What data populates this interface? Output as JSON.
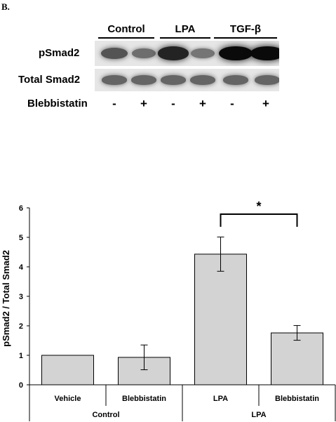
{
  "panel_label": "B.",
  "blot": {
    "groups": [
      "Control",
      "LPA",
      "TGF-β"
    ],
    "rows": [
      "pSmad2",
      "Total Smad2",
      "Blebbistatin"
    ],
    "lane_signs": [
      "-",
      "+",
      "-",
      "+",
      "-",
      "+"
    ],
    "psmad2_band_intensity": [
      0.55,
      0.4,
      0.85,
      0.35,
      1.0,
      1.0
    ],
    "total_smad2_band_intensity": [
      0.45,
      0.45,
      0.45,
      0.45,
      0.45,
      0.45
    ]
  },
  "chart_data": {
    "type": "bar",
    "categories": [
      "Vehicle",
      "Blebbistatin",
      "LPA",
      "Blebbistatin"
    ],
    "groups": [
      "Control",
      "LPA"
    ],
    "values": [
      1.0,
      0.93,
      4.43,
      1.76
    ],
    "errors": [
      0,
      0.42,
      0.58,
      0.25
    ],
    "ylabel": "pSmad2 / Total Smad2",
    "ylim": [
      0,
      6
    ],
    "yticks": [
      "0",
      "1",
      "2",
      "3",
      "4",
      "5",
      "6"
    ],
    "significance": "*",
    "bar_color": "#d3d3d3",
    "grid": false
  }
}
